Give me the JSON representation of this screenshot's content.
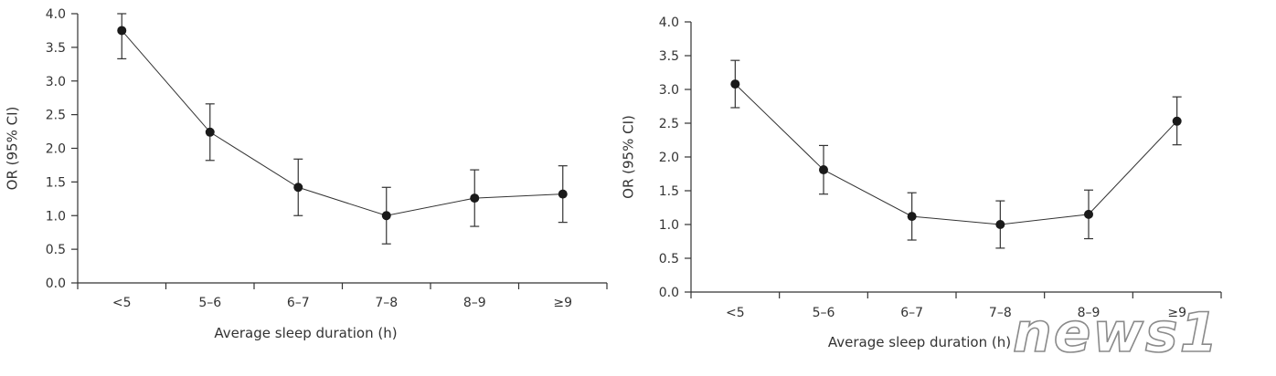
{
  "chart_data": [
    {
      "type": "line",
      "categories": [
        "<5",
        "5–6",
        "6–7",
        "7–8",
        "8–9",
        "≥9"
      ],
      "series": [
        {
          "values": [
            3.75,
            2.24,
            1.42,
            1.0,
            1.26,
            1.32
          ],
          "ci_lower": [
            3.33,
            1.82,
            1.0,
            0.58,
            0.84,
            0.9
          ],
          "ci_upper": [
            4.0,
            2.66,
            1.84,
            1.42,
            1.68,
            1.74
          ]
        }
      ],
      "xlabel": "Average sleep duration (h)",
      "ylabel": "OR (95% CI)",
      "ylim": [
        0,
        4
      ],
      "yticks": [
        "0.0",
        "0.5",
        "1.0",
        "1.5",
        "2.0",
        "2.5",
        "3.0",
        "3.5",
        "4.0"
      ],
      "grid": false
    },
    {
      "type": "line",
      "categories": [
        "<5",
        "5–6",
        "6–7",
        "7–8",
        "8–9",
        "≥9"
      ],
      "series": [
        {
          "values": [
            3.08,
            1.81,
            1.12,
            1.0,
            1.15,
            2.53
          ],
          "ci_lower": [
            2.73,
            1.45,
            0.77,
            0.65,
            0.79,
            2.18
          ],
          "ci_upper": [
            3.43,
            2.17,
            1.47,
            1.35,
            1.51,
            2.89
          ]
        }
      ],
      "xlabel": "Average sleep duration (h)",
      "ylabel": "OR (95% CI)",
      "ylim": [
        0,
        4
      ],
      "yticks": [
        "0.0",
        "0.5",
        "1.0",
        "1.5",
        "2.0",
        "2.5",
        "3.0",
        "3.5",
        "4.0"
      ],
      "grid": false
    }
  ],
  "watermark": {
    "text": "news1"
  }
}
